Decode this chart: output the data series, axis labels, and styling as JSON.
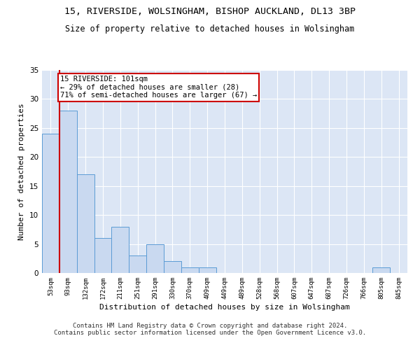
{
  "title1": "15, RIVERSIDE, WOLSINGHAM, BISHOP AUCKLAND, DL13 3BP",
  "title2": "Size of property relative to detached houses in Wolsingham",
  "xlabel": "Distribution of detached houses by size in Wolsingham",
  "ylabel": "Number of detached properties",
  "bar_labels": [
    "53sqm",
    "93sqm",
    "132sqm",
    "172sqm",
    "211sqm",
    "251sqm",
    "291sqm",
    "330sqm",
    "370sqm",
    "409sqm",
    "449sqm",
    "489sqm",
    "528sqm",
    "568sqm",
    "607sqm",
    "647sqm",
    "687sqm",
    "726sqm",
    "766sqm",
    "805sqm",
    "845sqm"
  ],
  "bar_values": [
    24,
    28,
    17,
    6,
    8,
    3,
    5,
    2,
    1,
    1,
    0,
    0,
    0,
    0,
    0,
    0,
    0,
    0,
    0,
    1,
    0
  ],
  "bar_color": "#c9d9f0",
  "bar_edge_color": "#5b9bd5",
  "ylim": [
    0,
    35
  ],
  "yticks": [
    0,
    5,
    10,
    15,
    20,
    25,
    30,
    35
  ],
  "annotation_box_text": "15 RIVERSIDE: 101sqm\n← 29% of detached houses are smaller (28)\n71% of semi-detached houses are larger (67) →",
  "vline_x": 0.5,
  "vline_color": "#cc0000",
  "background_color": "#dce6f5",
  "grid_color": "#ffffff",
  "footnote": "Contains HM Land Registry data © Crown copyright and database right 2024.\nContains public sector information licensed under the Open Government Licence v3.0.",
  "title_fontsize": 9.5,
  "subtitle_fontsize": 8.5,
  "xlabel_fontsize": 8,
  "ylabel_fontsize": 8,
  "annotation_fontsize": 7.5,
  "footnote_fontsize": 6.5
}
